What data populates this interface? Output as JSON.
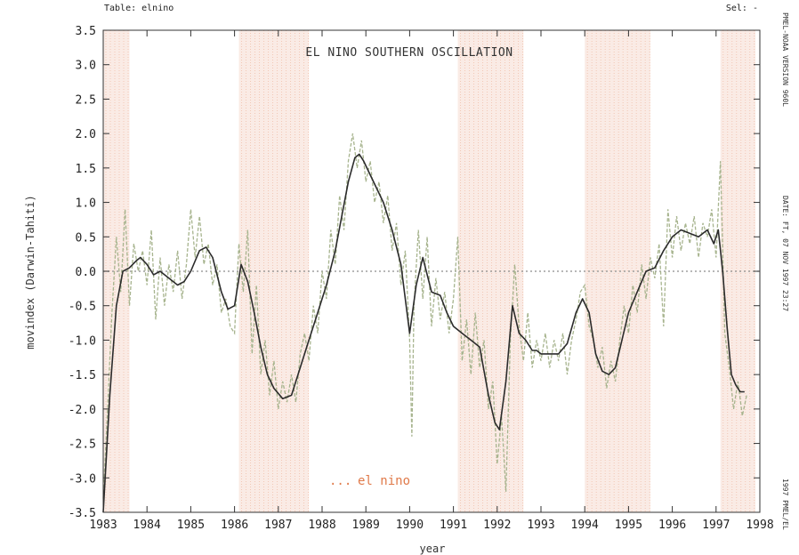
{
  "header": {
    "table_label": "Table: elnino",
    "sel_label": "Sel: -"
  },
  "side_labels": {
    "top": "PMEL-NOAA VERSION 960L",
    "middle": "DATE: FT, 07 NOV 1997 23:27",
    "bottom": "1997 PMEL/EL"
  },
  "legend": {
    "marker": "...",
    "label": "el nino"
  },
  "colors": {
    "el_nino_shading": "#f2c7b5",
    "smoothed_line": "#2b2b2b",
    "raw_line": "#a7b48e",
    "zero_line": "#8c8c8c"
  },
  "chart_data": {
    "type": "line",
    "title": "EL NINO SOUTHERN OSCILLATION",
    "xlabel": "year",
    "ylabel": "movindex (Darwin-Tahiti)",
    "xlim": [
      1983,
      1998
    ],
    "ylim": [
      -3.5,
      3.5
    ],
    "x_ticks": [
      "1983",
      "1984",
      "1985",
      "1986",
      "1987",
      "1988",
      "1989",
      "1990",
      "1991",
      "1992",
      "1993",
      "1994",
      "1995",
      "1996",
      "1997",
      "1998"
    ],
    "y_ticks": [
      "3.5",
      "3.0",
      "2.5",
      "2.0",
      "1.5",
      "1.0",
      "0.5",
      "0.0",
      "-0.5",
      "-1.0",
      "-1.5",
      "-2.0",
      "-2.5",
      "-3.0",
      "-3.5"
    ],
    "el_nino_periods": [
      [
        1983.0,
        1983.6
      ],
      [
        1986.1,
        1987.7
      ],
      [
        1991.1,
        1992.6
      ],
      [
        1994.0,
        1995.5
      ],
      [
        1997.1,
        1997.9
      ]
    ],
    "reference_line": 0,
    "series": [
      {
        "name": "smoothed",
        "x": [
          1983.0,
          1983.15,
          1983.3,
          1983.45,
          1983.6,
          1983.75,
          1983.85,
          1984.0,
          1984.15,
          1984.3,
          1984.5,
          1984.7,
          1984.85,
          1985.0,
          1985.2,
          1985.35,
          1985.5,
          1985.7,
          1985.85,
          1986.0,
          1986.15,
          1986.3,
          1986.45,
          1986.6,
          1986.75,
          1986.9,
          1987.1,
          1987.3,
          1987.5,
          1987.7,
          1987.9,
          1988.1,
          1988.3,
          1988.45,
          1988.6,
          1988.75,
          1988.85,
          1988.95,
          1989.1,
          1989.25,
          1989.4,
          1989.6,
          1989.8,
          1990.0,
          1990.15,
          1990.3,
          1990.5,
          1990.7,
          1990.85,
          1991.0,
          1991.2,
          1991.4,
          1991.6,
          1991.8,
          1991.95,
          1992.05,
          1992.2,
          1992.35,
          1992.5,
          1992.65,
          1992.8,
          1992.9,
          1993.0,
          1993.2,
          1993.4,
          1993.6,
          1993.8,
          1993.95,
          1994.1,
          1994.25,
          1994.4,
          1994.55,
          1994.7,
          1994.85,
          1995.0,
          1995.2,
          1995.4,
          1995.6,
          1995.8,
          1996.0,
          1996.2,
          1996.4,
          1996.6,
          1996.8,
          1996.95,
          1997.05,
          1997.15,
          1997.25,
          1997.35,
          1997.45,
          1997.55,
          1997.65
        ],
        "values": [
          -3.5,
          -1.8,
          -0.5,
          0.0,
          0.05,
          0.15,
          0.2,
          0.1,
          -0.05,
          0.0,
          -0.1,
          -0.2,
          -0.15,
          0.0,
          0.3,
          0.35,
          0.2,
          -0.3,
          -0.55,
          -0.5,
          0.1,
          -0.15,
          -0.6,
          -1.1,
          -1.5,
          -1.7,
          -1.85,
          -1.8,
          -1.4,
          -1.0,
          -0.6,
          -0.2,
          0.3,
          0.8,
          1.3,
          1.65,
          1.7,
          1.6,
          1.4,
          1.2,
          1.0,
          0.6,
          0.1,
          -0.9,
          -0.2,
          0.2,
          -0.3,
          -0.35,
          -0.6,
          -0.8,
          -0.9,
          -1.0,
          -1.1,
          -1.8,
          -2.2,
          -2.3,
          -1.6,
          -0.5,
          -0.9,
          -1.0,
          -1.15,
          -1.15,
          -1.2,
          -1.2,
          -1.2,
          -1.05,
          -0.6,
          -0.4,
          -0.6,
          -1.2,
          -1.45,
          -1.5,
          -1.4,
          -1.0,
          -0.6,
          -0.3,
          0.0,
          0.05,
          0.3,
          0.5,
          0.6,
          0.55,
          0.5,
          0.6,
          0.4,
          0.6,
          0.0,
          -0.8,
          -1.5,
          -1.65,
          -1.75,
          -1.75
        ]
      },
      {
        "name": "raw",
        "x": [
          1983.0,
          1983.1,
          1983.2,
          1983.3,
          1983.4,
          1983.5,
          1983.6,
          1983.7,
          1983.8,
          1983.9,
          1984.0,
          1984.1,
          1984.2,
          1984.3,
          1984.4,
          1984.5,
          1984.6,
          1984.7,
          1984.8,
          1984.9,
          1985.0,
          1985.1,
          1985.2,
          1985.3,
          1985.4,
          1985.5,
          1985.6,
          1985.7,
          1985.8,
          1985.9,
          1986.0,
          1986.1,
          1986.2,
          1986.3,
          1986.4,
          1986.5,
          1986.6,
          1986.7,
          1986.8,
          1986.9,
          1987.0,
          1987.1,
          1987.2,
          1987.3,
          1987.4,
          1987.5,
          1987.6,
          1987.7,
          1987.8,
          1987.9,
          1988.0,
          1988.1,
          1988.2,
          1988.3,
          1988.4,
          1988.5,
          1988.6,
          1988.7,
          1988.8,
          1988.9,
          1989.0,
          1989.1,
          1989.2,
          1989.3,
          1989.4,
          1989.5,
          1989.6,
          1989.7,
          1989.8,
          1989.9,
          1990.0,
          1990.05,
          1990.1,
          1990.2,
          1990.3,
          1990.4,
          1990.5,
          1990.6,
          1990.7,
          1990.8,
          1990.9,
          1991.0,
          1991.1,
          1991.2,
          1991.3,
          1991.4,
          1991.5,
          1991.6,
          1991.7,
          1991.8,
          1991.9,
          1992.0,
          1992.1,
          1992.2,
          1992.3,
          1992.4,
          1992.5,
          1992.6,
          1992.7,
          1992.8,
          1992.9,
          1993.0,
          1993.1,
          1993.2,
          1993.3,
          1993.4,
          1993.5,
          1993.6,
          1993.7,
          1993.8,
          1993.9,
          1994.0,
          1994.1,
          1994.2,
          1994.3,
          1994.4,
          1994.5,
          1994.6,
          1994.7,
          1994.8,
          1994.9,
          1995.0,
          1995.1,
          1995.2,
          1995.3,
          1995.4,
          1995.5,
          1995.6,
          1995.7,
          1995.8,
          1995.9,
          1996.0,
          1996.1,
          1996.2,
          1996.3,
          1996.4,
          1996.5,
          1996.6,
          1996.7,
          1996.8,
          1996.9,
          1997.0,
          1997.1,
          1997.2,
          1997.3,
          1997.4,
          1997.5,
          1997.6,
          1997.7
        ],
        "values": [
          -3.3,
          -2.0,
          -0.6,
          0.5,
          -0.3,
          0.9,
          -0.5,
          0.4,
          0.0,
          0.3,
          -0.2,
          0.6,
          -0.7,
          0.2,
          -0.5,
          0.1,
          -0.3,
          0.3,
          -0.4,
          0.1,
          0.9,
          0.2,
          0.8,
          0.1,
          0.4,
          -0.2,
          0.1,
          -0.6,
          -0.4,
          -0.8,
          -0.9,
          0.4,
          -0.3,
          0.6,
          -1.2,
          -0.2,
          -1.5,
          -1.0,
          -1.8,
          -1.3,
          -2.0,
          -1.6,
          -1.9,
          -1.5,
          -1.9,
          -1.2,
          -0.9,
          -1.3,
          -0.5,
          -0.9,
          0.0,
          -0.4,
          0.6,
          0.1,
          1.1,
          0.6,
          1.6,
          2.0,
          1.5,
          1.9,
          1.3,
          1.6,
          1.0,
          1.3,
          0.7,
          1.1,
          0.3,
          0.7,
          -0.2,
          0.3,
          -1.0,
          -2.4,
          -0.5,
          0.6,
          -0.4,
          0.5,
          -0.8,
          -0.1,
          -0.7,
          -0.3,
          -0.9,
          -0.4,
          0.5,
          -1.3,
          -0.7,
          -1.5,
          -0.6,
          -1.4,
          -1.0,
          -2.0,
          -1.6,
          -2.8,
          -2.1,
          -3.2,
          -1.0,
          0.1,
          -0.8,
          -1.3,
          -0.6,
          -1.4,
          -1.0,
          -1.3,
          -0.9,
          -1.4,
          -1.0,
          -1.3,
          -0.9,
          -1.5,
          -1.0,
          -0.7,
          -0.3,
          -0.2,
          -0.8,
          -1.0,
          -1.4,
          -1.1,
          -1.7,
          -1.3,
          -1.6,
          -1.0,
          -0.5,
          -0.9,
          -0.2,
          -0.6,
          0.1,
          -0.4,
          0.2,
          -0.1,
          0.4,
          -0.8,
          0.9,
          0.2,
          0.8,
          0.3,
          0.7,
          0.4,
          0.8,
          0.2,
          0.7,
          0.5,
          0.9,
          0.2,
          1.6,
          -0.9,
          -1.4,
          -2.0,
          -1.6,
          -2.1,
          -1.8
        ]
      }
    ]
  }
}
